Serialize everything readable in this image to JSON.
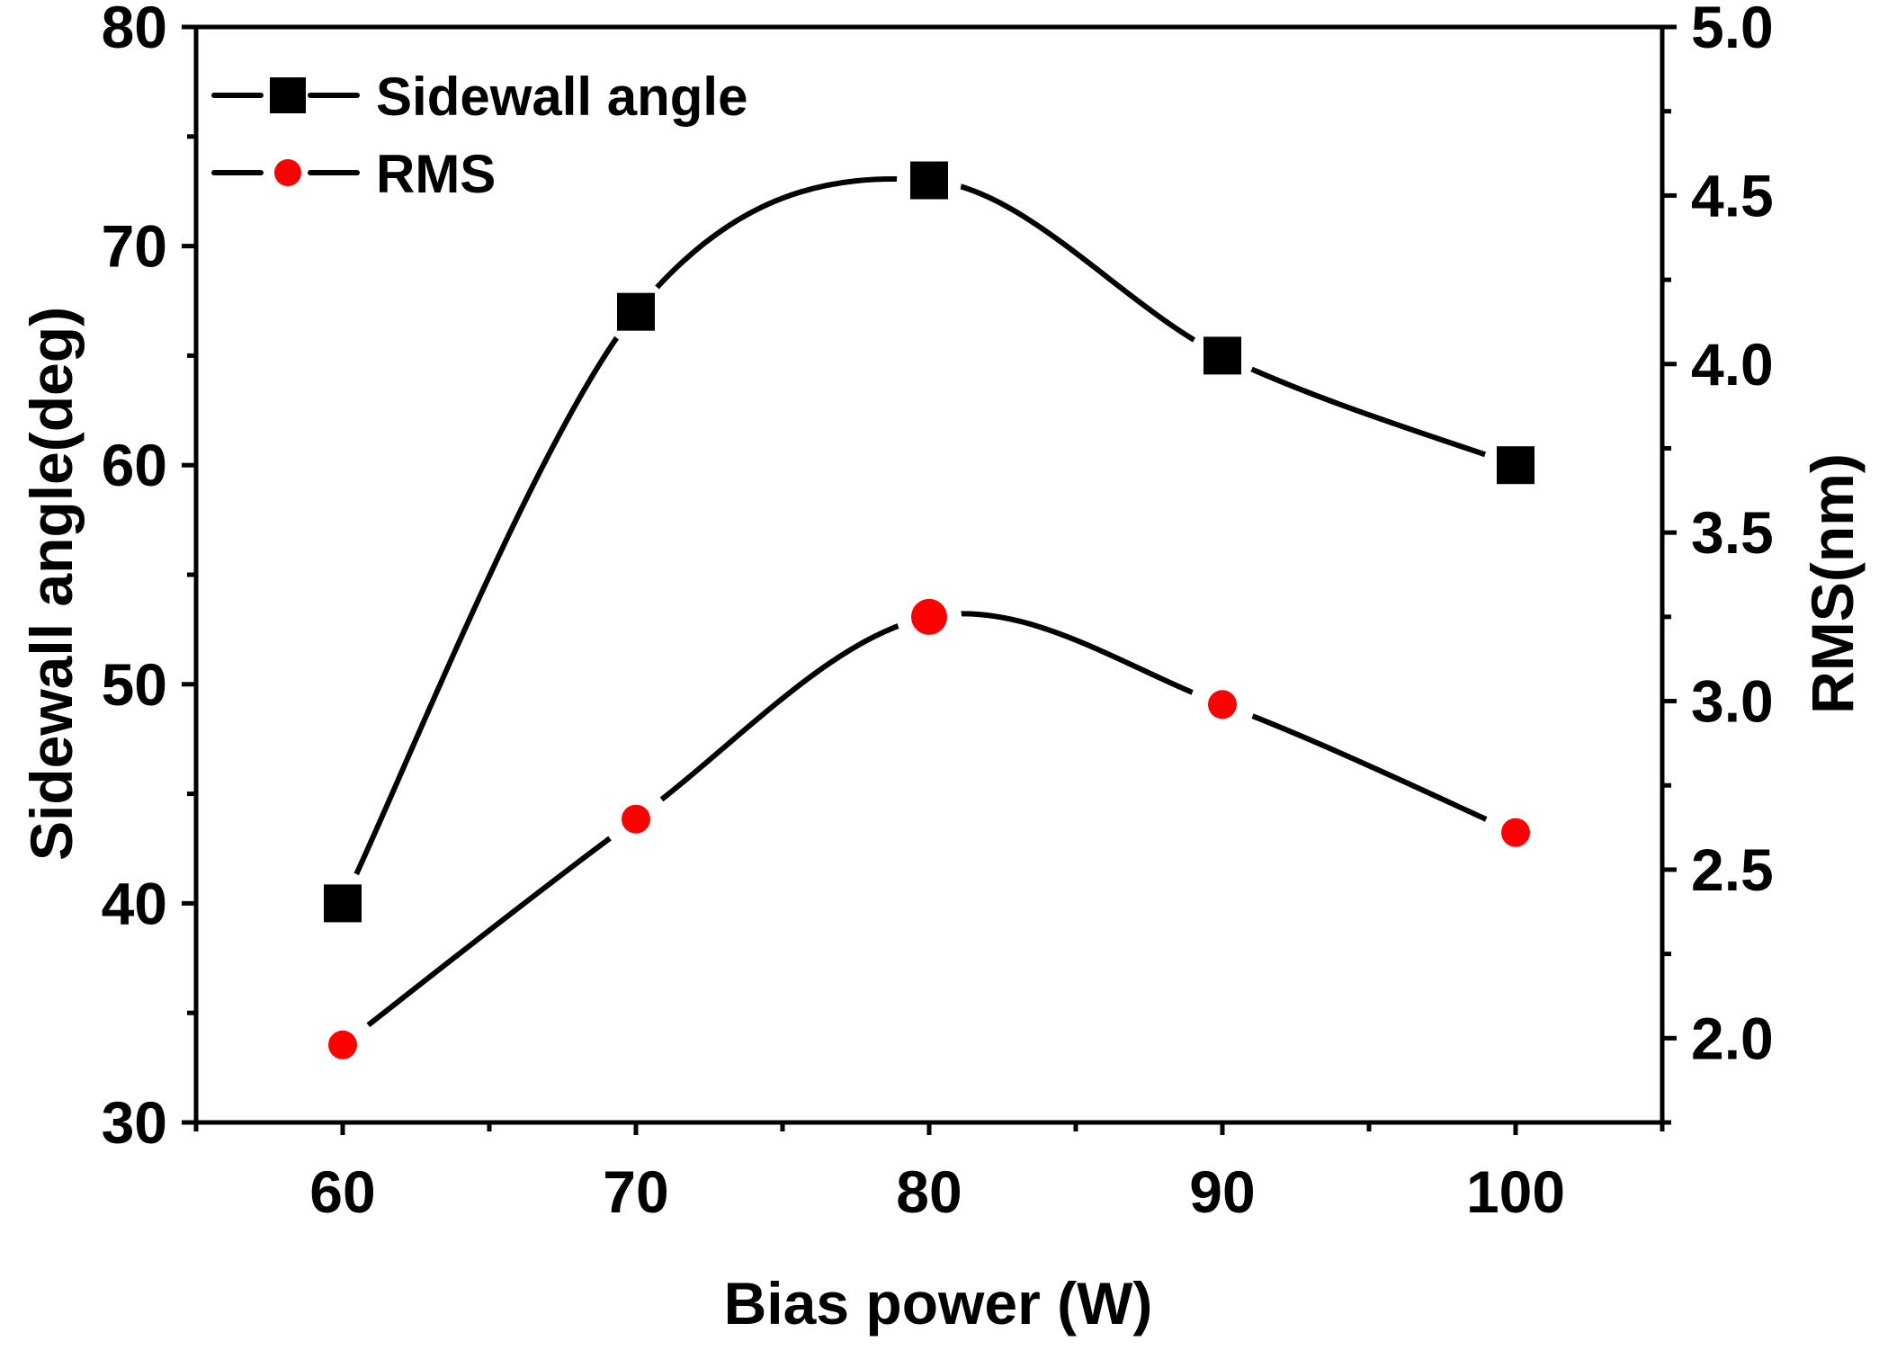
{
  "chart_data": {
    "type": "line",
    "title": "",
    "xlabel": "Bias power (W)",
    "ylabel_left": "Sidewall angle(deg)",
    "ylabel_right": "RMS(nm)",
    "x": [
      60,
      70,
      80,
      90,
      100
    ],
    "xlim": [
      55,
      105
    ],
    "xticks": [
      60,
      70,
      80,
      90,
      100
    ],
    "xtick_labels": [
      "60",
      "70",
      "80",
      "90",
      "100"
    ],
    "ylim_left": [
      30,
      80
    ],
    "yticks_left": [
      30,
      40,
      50,
      60,
      70,
      80
    ],
    "ytick_labels_left": [
      "30",
      "40",
      "50",
      "60",
      "70",
      "80"
    ],
    "ylim_right": [
      1.75,
      5.0
    ],
    "yticks_right": [
      2.0,
      2.5,
      3.0,
      3.5,
      4.0,
      4.5,
      5.0
    ],
    "ytick_labels_right": [
      "2.0",
      "2.5",
      "3.0",
      "3.5",
      "4.0",
      "4.5",
      "5.0"
    ],
    "grid": false,
    "legend_position": "top-left",
    "series": [
      {
        "name": "Sidewall angle",
        "axis": "left",
        "marker": "square",
        "color": "#000000",
        "values": [
          40,
          67,
          73,
          65,
          60
        ]
      },
      {
        "name": "RMS",
        "axis": "right",
        "marker": "circle",
        "color": "#ff0000",
        "values": [
          1.98,
          2.65,
          3.25,
          2.99,
          2.61
        ]
      }
    ]
  }
}
